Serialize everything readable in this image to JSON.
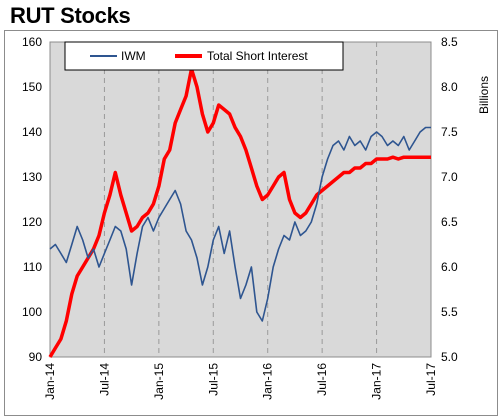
{
  "chart_data": {
    "type": "line",
    "title": "RUT Stocks",
    "ylabel_right": "Billions",
    "x_ticks": [
      "Jan-14",
      "Jul-14",
      "Jan-15",
      "Jul-15",
      "Jan-16",
      "Jul-16",
      "Jan-17",
      "Jul-17"
    ],
    "ylim_left": [
      90,
      160
    ],
    "yticks_left": [
      "90",
      "100",
      "110",
      "120",
      "130",
      "140",
      "150",
      "160"
    ],
    "ylim_right": [
      5.0,
      8.5
    ],
    "yticks_right": [
      "5.0",
      "5.5",
      "6.0",
      "6.5",
      "7.0",
      "7.5",
      "8.0",
      "8.5"
    ],
    "grid": "vertical dashed at x ticks",
    "legend_position": "top-center",
    "series": [
      {
        "name": "IWM",
        "axis": "left",
        "color": "#2e5590",
        "x": [
          0,
          0.05,
          0.1,
          0.15,
          0.2,
          0.25,
          0.3,
          0.35,
          0.4,
          0.45,
          0.5,
          0.55,
          0.6,
          0.65,
          0.7,
          0.75,
          0.8,
          0.85,
          0.9,
          0.95,
          1.0,
          1.05,
          1.1,
          1.15,
          1.2,
          1.25,
          1.3,
          1.35,
          1.4,
          1.45,
          1.5,
          1.55,
          1.6,
          1.65,
          1.7,
          1.75,
          1.8,
          1.85,
          1.9,
          1.95,
          2.0,
          2.05,
          2.1,
          2.15,
          2.2,
          2.25,
          2.3,
          2.35,
          2.4,
          2.45,
          2.5,
          2.55,
          2.6,
          2.65,
          2.7,
          2.75,
          2.8,
          2.85,
          2.9,
          2.95,
          3.0,
          3.05,
          3.1,
          3.15,
          3.2,
          3.25,
          3.3,
          3.35,
          3.4,
          3.45,
          3.5
        ],
        "values": [
          114,
          115,
          113,
          111,
          115,
          119,
          116,
          112,
          114,
          110,
          113,
          116,
          119,
          118,
          114,
          106,
          113,
          119,
          121,
          118,
          121,
          123,
          125,
          127,
          124,
          118,
          116,
          112,
          106,
          110,
          116,
          119,
          113,
          118,
          110,
          103,
          106,
          110,
          100,
          98,
          103,
          110,
          114,
          117,
          116,
          120,
          117,
          118,
          120,
          124,
          130,
          134,
          137,
          138,
          136,
          139,
          137,
          138,
          136,
          139,
          140,
          139,
          137,
          138,
          137,
          139,
          136,
          138,
          140,
          141,
          141
        ]
      },
      {
        "name": "Total Short Interest",
        "axis": "right",
        "color": "#ff0000",
        "x": [
          0,
          0.05,
          0.1,
          0.15,
          0.2,
          0.25,
          0.3,
          0.35,
          0.4,
          0.45,
          0.5,
          0.55,
          0.6,
          0.65,
          0.7,
          0.75,
          0.8,
          0.85,
          0.9,
          0.95,
          1.0,
          1.05,
          1.1,
          1.15,
          1.2,
          1.25,
          1.3,
          1.35,
          1.4,
          1.45,
          1.5,
          1.55,
          1.6,
          1.65,
          1.7,
          1.75,
          1.8,
          1.85,
          1.9,
          1.95,
          2.0,
          2.05,
          2.1,
          2.15,
          2.2,
          2.25,
          2.3,
          2.35,
          2.4,
          2.45,
          2.5,
          2.55,
          2.6,
          2.65,
          2.7,
          2.75,
          2.8,
          2.85,
          2.9,
          2.95,
          3.0,
          3.05,
          3.1,
          3.15,
          3.2,
          3.25,
          3.3,
          3.35,
          3.4,
          3.45,
          3.5
        ],
        "values": [
          5.0,
          5.1,
          5.2,
          5.4,
          5.7,
          5.9,
          6.0,
          6.1,
          6.2,
          6.35,
          6.6,
          6.8,
          7.05,
          6.8,
          6.6,
          6.4,
          6.45,
          6.55,
          6.6,
          6.7,
          6.9,
          7.2,
          7.3,
          7.6,
          7.75,
          7.9,
          8.2,
          8.0,
          7.7,
          7.5,
          7.6,
          7.8,
          7.75,
          7.7,
          7.55,
          7.45,
          7.3,
          7.1,
          6.9,
          6.75,
          6.8,
          6.9,
          7.0,
          7.05,
          6.75,
          6.6,
          6.55,
          6.6,
          6.7,
          6.8,
          6.85,
          6.9,
          6.95,
          7.0,
          7.05,
          7.05,
          7.1,
          7.1,
          7.15,
          7.15,
          7.2,
          7.2,
          7.2,
          7.22,
          7.2,
          7.22,
          7.22,
          7.22,
          7.22,
          7.22,
          7.22
        ]
      }
    ]
  }
}
